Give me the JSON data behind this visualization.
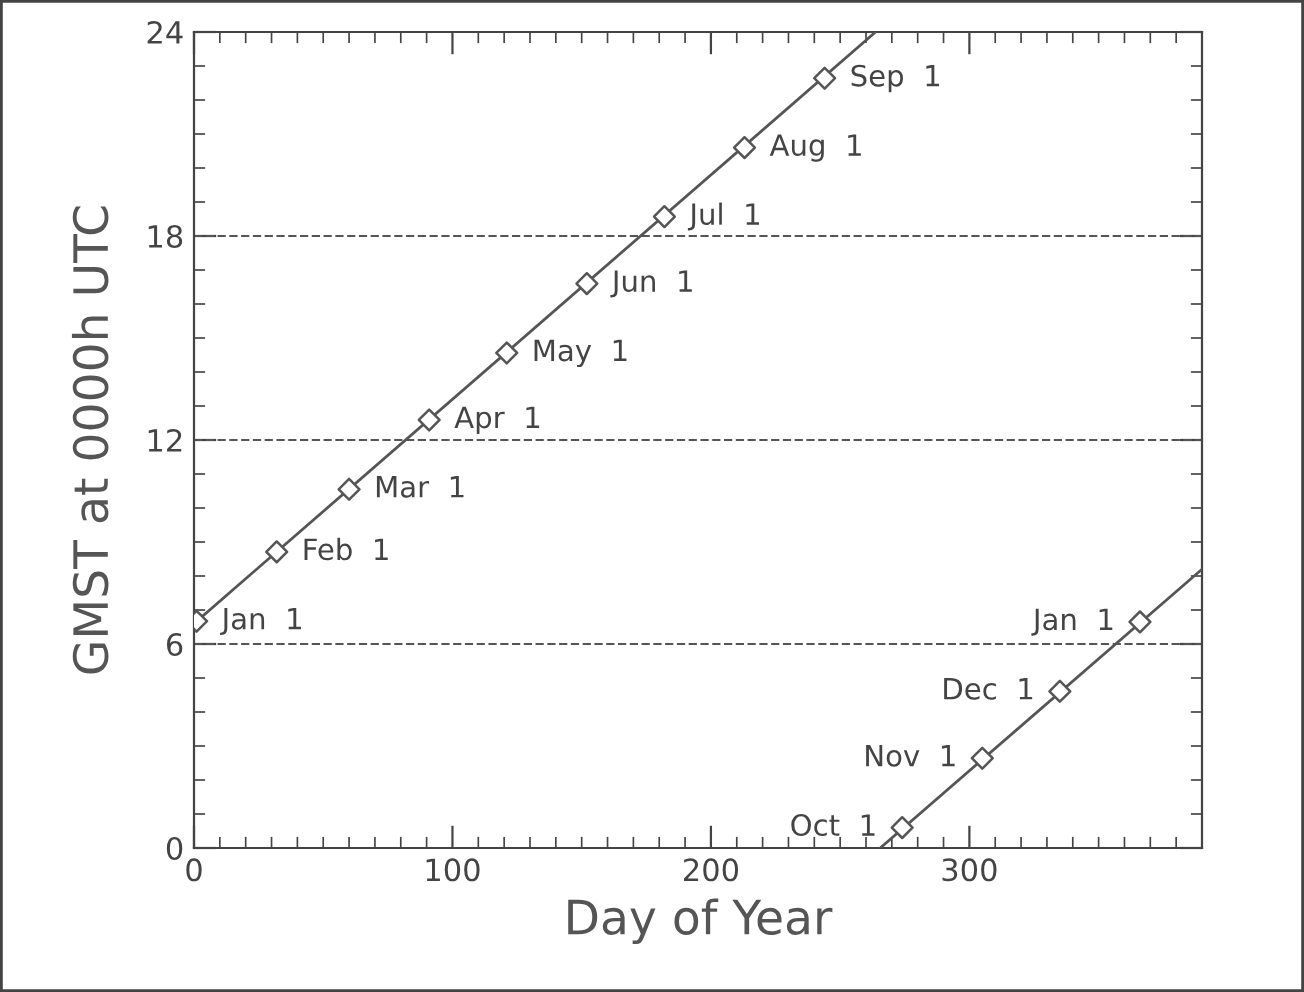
{
  "chart_data": {
    "type": "line",
    "xlabel": "Day of Year",
    "ylabel": "GMST at 0000h UTC",
    "xlim": [
      0,
      390
    ],
    "xticks": [
      0,
      100,
      200,
      300
    ],
    "ylim": [
      0,
      24
    ],
    "yticks": [
      0,
      6,
      12,
      18,
      24
    ],
    "series": [
      {
        "color": "#555555",
        "x": [
          0,
          263.7
        ],
        "values": [
          6.6,
          24
        ]
      },
      {
        "color": "#555555",
        "x": [
          265.5,
          390
        ],
        "values": [
          0,
          8.2
        ]
      },
      {
        "type": "scatter",
        "color": "#555555",
        "marker": "diamond",
        "x": [
          1,
          32,
          60,
          91,
          121,
          152,
          182,
          213,
          244
        ],
        "values": [
          6.67,
          8.71,
          10.55,
          12.59,
          14.56,
          16.6,
          18.57,
          20.6,
          22.64
        ]
      },
      {
        "type": "scatter",
        "color": "#555555",
        "marker": "diamond",
        "x": [
          274,
          305,
          335,
          366
        ],
        "values": [
          0.6,
          2.64,
          4.61,
          6.65
        ]
      }
    ],
    "ref_lines": [
      {
        "axis": "y",
        "value": 6,
        "color": "#555555",
        "line_style": "dashed"
      },
      {
        "axis": "y",
        "value": 12,
        "color": "#555555",
        "line_style": "dashed"
      },
      {
        "axis": "y",
        "value": 18,
        "color": "#555555",
        "line_style": "dashed"
      }
    ],
    "annotations": [
      {
        "text": "Jan  1",
        "x": 1,
        "y": 6.67
      },
      {
        "text": "Feb  1",
        "x": 32,
        "y": 8.71
      },
      {
        "text": "Mar  1",
        "x": 60,
        "y": 10.55
      },
      {
        "text": "Apr  1",
        "x": 91,
        "y": 12.59
      },
      {
        "text": "May  1",
        "x": 121,
        "y": 14.56
      },
      {
        "text": "Jun  1",
        "x": 152,
        "y": 16.6
      },
      {
        "text": "Jul  1",
        "x": 182,
        "y": 18.57
      },
      {
        "text": "Aug  1",
        "x": 213,
        "y": 20.6
      },
      {
        "text": "Sep  1",
        "x": 244,
        "y": 22.64
      },
      {
        "text": "Oct  1",
        "x": 274,
        "y": 0.6
      },
      {
        "text": "Nov  1",
        "x": 305,
        "y": 2.64
      },
      {
        "text": "Dec  1",
        "x": 335,
        "y": 4.61
      },
      {
        "text": "Jan  1",
        "x": 366,
        "y": 6.65
      }
    ]
  }
}
